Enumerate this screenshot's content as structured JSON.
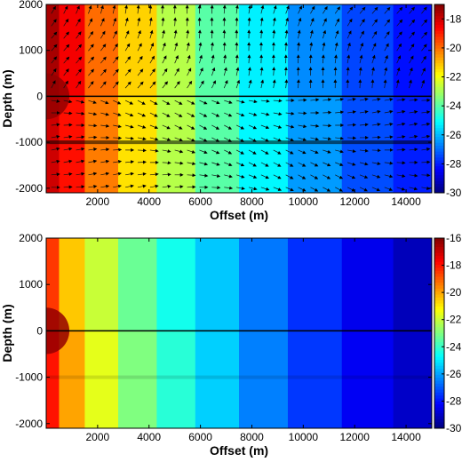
{
  "chart_data": [
    {
      "type": "heatmap",
      "title": "",
      "xlabel": "Offset (m)",
      "ylabel": "Depth (m)",
      "xlim": [
        0,
        15000
      ],
      "ylim": [
        -2100,
        2000
      ],
      "xticks": [
        "2000",
        "4000",
        "6000",
        "8000",
        "10000",
        "12000",
        "14000"
      ],
      "yticks": [
        "2000",
        "1000",
        "0",
        "-1000",
        "-2000"
      ],
      "colorbar": {
        "ticks": [
          "-18",
          "-20",
          "-22",
          "-24",
          "-26",
          "-28",
          "-30"
        ],
        "range": [
          -30,
          -17
        ]
      },
      "colormap": "jet",
      "overlay": "quiver arrows",
      "grid": false,
      "offsets": [
        0,
        500,
        1500,
        2800,
        4300,
        5800,
        7500,
        9400,
        11500,
        13500,
        15000
      ],
      "levels_above_surface": [
        -17.5,
        -18.5,
        -20.0,
        -21.3,
        -22.8,
        -24.0,
        -25.3,
        -26.6,
        -27.5,
        -28.2,
        -28.5
      ],
      "levels_below_surface": [
        -18.0,
        -18.8,
        -20.2,
        -21.5,
        -22.8,
        -24.0,
        -25.2,
        -26.4,
        -27.4,
        -28.0,
        -28.3
      ]
    },
    {
      "type": "heatmap",
      "title": "",
      "xlabel": "Offset (m)",
      "ylabel": "Depth (m)",
      "xlim": [
        0,
        15000
      ],
      "ylim": [
        -2100,
        2000
      ],
      "xticks": [
        "2000",
        "4000",
        "6000",
        "8000",
        "10000",
        "12000",
        "14000"
      ],
      "yticks": [
        "2000",
        "1000",
        "0",
        "-1000",
        "-2000"
      ],
      "colorbar": {
        "ticks": [
          "-16",
          "-18",
          "-20",
          "-22",
          "-24",
          "-26",
          "-28",
          "-30"
        ],
        "range": [
          -30,
          -16
        ]
      },
      "colormap": "jet",
      "grid": false,
      "offsets": [
        0,
        500,
        1500,
        2800,
        4300,
        5800,
        7500,
        9400,
        11500,
        13500,
        15000
      ],
      "levels_above_surface": [
        -18.5,
        -20.5,
        -22.0,
        -23.3,
        -24.5,
        -25.5,
        -26.6,
        -27.6,
        -28.5,
        -29.2,
        -29.6
      ],
      "levels_below_surface": [
        -18.0,
        -20.0,
        -21.6,
        -23.0,
        -24.2,
        -25.4,
        -26.5,
        -27.5,
        -28.4,
        -29.0,
        -29.4
      ]
    }
  ]
}
